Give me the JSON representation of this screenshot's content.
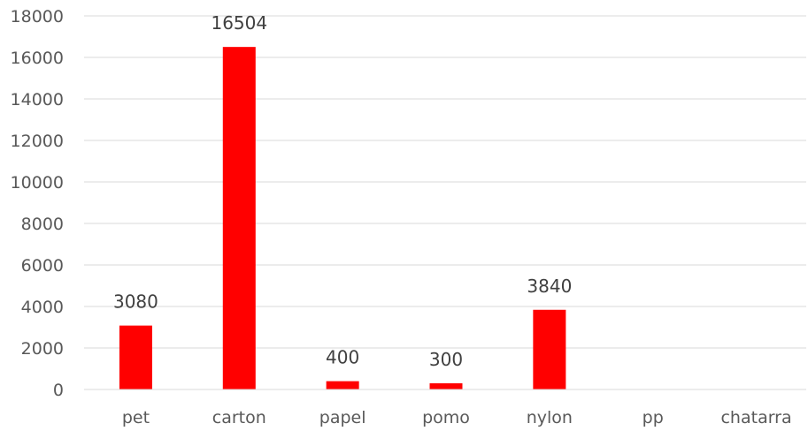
{
  "chart_data": {
    "type": "bar",
    "categories": [
      "pet",
      "carton",
      "papel",
      "pomo",
      "nylon",
      "pp",
      "chatarra"
    ],
    "values": [
      3080,
      16504,
      400,
      300,
      3840,
      0,
      0
    ],
    "data_labels": [
      "3080",
      "16504",
      "400",
      "300",
      "3840",
      "",
      ""
    ],
    "title": "",
    "xlabel": "",
    "ylabel": "",
    "ylim": [
      0,
      18000
    ],
    "yticks": [
      0,
      2000,
      4000,
      6000,
      8000,
      10000,
      12000,
      14000,
      16000,
      18000
    ],
    "ytick_labels": [
      "0",
      "2000",
      "4000",
      "6000",
      "8000",
      "10000",
      "12000",
      "14000",
      "16000",
      "18000"
    ],
    "grid": true,
    "legend": "none",
    "bar_color": "#ff0000"
  }
}
